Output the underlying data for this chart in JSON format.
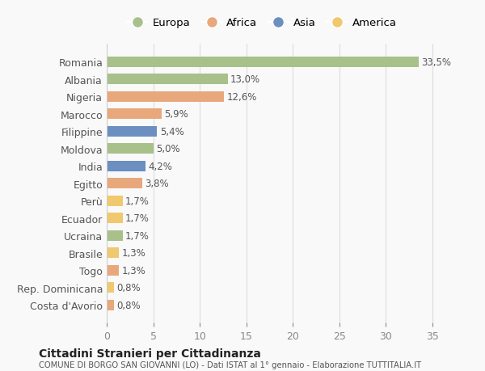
{
  "countries": [
    "Romania",
    "Albania",
    "Nigeria",
    "Marocco",
    "Filippine",
    "Moldova",
    "India",
    "Egitto",
    "Perù",
    "Ecuador",
    "Ucraina",
    "Brasile",
    "Togo",
    "Rep. Dominicana",
    "Costa d'Avorio"
  ],
  "values": [
    33.5,
    13.0,
    12.6,
    5.9,
    5.4,
    5.0,
    4.2,
    3.8,
    1.7,
    1.7,
    1.7,
    1.3,
    1.3,
    0.8,
    0.8
  ],
  "labels": [
    "33,5%",
    "13,0%",
    "12,6%",
    "5,9%",
    "5,4%",
    "5,0%",
    "4,2%",
    "3,8%",
    "1,7%",
    "1,7%",
    "1,7%",
    "1,3%",
    "1,3%",
    "0,8%",
    "0,8%"
  ],
  "colors": [
    "#a8c08a",
    "#a8c08a",
    "#e8a87c",
    "#e8a87c",
    "#6a8fc0",
    "#a8c08a",
    "#6a8fc0",
    "#e8a87c",
    "#f0c96e",
    "#f0c96e",
    "#a8c08a",
    "#f0c96e",
    "#e8a87c",
    "#f0c96e",
    "#e8a87c"
  ],
  "legend_labels": [
    "Europa",
    "Africa",
    "Asia",
    "America"
  ],
  "legend_colors": [
    "#a8c08a",
    "#e8a87c",
    "#6a8fc0",
    "#f0c96e"
  ],
  "xlim": [
    0,
    37
  ],
  "xticks": [
    0,
    5,
    10,
    15,
    20,
    25,
    30,
    35
  ],
  "title": "Cittadini Stranieri per Cittadinanza",
  "subtitle": "COMUNE DI BORGO SAN GIOVANNI (LO) - Dati ISTAT al 1° gennaio - Elaborazione TUTTITALIA.IT",
  "background_color": "#f9f9f9",
  "grid_color": "#dddddd",
  "bar_height": 0.6
}
